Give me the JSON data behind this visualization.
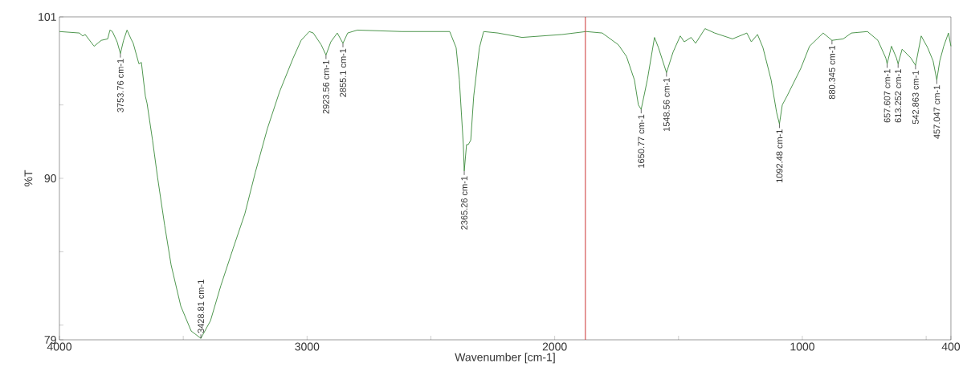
{
  "chart_data": {
    "type": "line",
    "xlabel": "Wavenumber [cm-1]",
    "ylabel": "%T",
    "xlim": [
      4000,
      400
    ],
    "ylim": [
      79,
      101
    ],
    "xticks": [
      4000,
      {
        "value": 3500,
        "label": null
      },
      3000,
      {
        "value": 2500,
        "label": null
      },
      2000,
      {
        "value": 1500,
        "label": null
      },
      1000,
      {
        "value": 500,
        "label": null
      },
      400
    ],
    "yticks": [
      79,
      {
        "value": 80,
        "label": null
      },
      {
        "value": 85,
        "label": null
      },
      90,
      {
        "value": 95,
        "label": null
      },
      101
    ],
    "grid": false,
    "marker": "none",
    "line_style": "solid",
    "x": [
      4000,
      3919,
      3906,
      3896,
      3860,
      3831,
      3805,
      3796,
      3786,
      3767,
      3753.76,
      3741,
      3727,
      3711,
      3702,
      3679,
      3669,
      3653,
      3646,
      3624,
      3604,
      3575,
      3549,
      3510,
      3468,
      3428.81,
      3390,
      3348,
      3299,
      3251,
      3209,
      3160,
      3111,
      3056,
      3024,
      2991,
      2975,
      2943,
      2923.56,
      2904,
      2878,
      2855.1,
      2836,
      2797,
      2618,
      2424,
      2398,
      2385,
      2369,
      2365.26,
      2356,
      2349,
      2339,
      2327,
      2304,
      2287,
      2229,
      2132,
      1970,
      1873,
      1808,
      1743,
      1710,
      1678,
      1662,
      1650.77,
      1626,
      1597,
      1581,
      1548.56,
      1522,
      1493,
      1477,
      1449,
      1431,
      1393,
      1354,
      1282,
      1224,
      1206,
      1181,
      1159,
      1126,
      1104,
      1092.48,
      1081,
      1062,
      1006,
      971,
      916,
      880.345,
      835,
      802,
      737,
      695,
      663,
      657.607,
      640,
      620,
      613.252,
      597,
      562,
      542.863,
      520,
      494,
      472,
      457.047,
      445,
      429,
      410,
      400
    ],
    "series": [
      {
        "color": "#3a8a3a",
        "values": [
          100.0,
          99.9,
          99.7,
          99.8,
          99.0,
          99.4,
          99.5,
          100.1,
          100.0,
          99.3,
          98.5,
          99.4,
          100.1,
          99.5,
          99.2,
          97.8,
          97.9,
          95.6,
          95.1,
          92.6,
          90.1,
          86.8,
          84.1,
          81.3,
          79.6,
          79.1,
          80.3,
          82.7,
          85.2,
          87.6,
          90.4,
          93.4,
          95.9,
          98.2,
          99.4,
          100.0,
          99.9,
          99.1,
          98.4,
          99.3,
          99.9,
          99.2,
          99.9,
          100.1,
          100.0,
          100.0,
          98.9,
          96.7,
          92.3,
          90.5,
          92.3,
          92.3,
          92.6,
          95.6,
          98.9,
          100.0,
          99.9,
          99.6,
          99.8,
          100.0,
          99.9,
          99.1,
          98.3,
          96.7,
          95.0,
          94.7,
          96.7,
          99.6,
          98.9,
          97.2,
          98.6,
          99.7,
          99.3,
          99.6,
          99.2,
          100.2,
          99.9,
          99.5,
          99.9,
          99.3,
          99.8,
          98.9,
          96.7,
          94.5,
          93.7,
          95.0,
          95.6,
          97.5,
          99.0,
          99.9,
          99.4,
          99.5,
          99.9,
          100.0,
          99.4,
          98.2,
          97.8,
          99.0,
          98.2,
          97.8,
          98.8,
          98.2,
          97.7,
          99.7,
          98.9,
          98.0,
          96.7,
          98.0,
          99.0,
          99.9,
          99.0
        ]
      }
    ],
    "ref_lines": [
      {
        "axis": "x",
        "value": 1876,
        "color": "#cc3333"
      }
    ],
    "annotations": [
      {
        "text": "3753.76 cm-1",
        "x": 3753.76,
        "y": 98.5
      },
      {
        "text": "3428.81 cm-1",
        "x": 3428.81,
        "y": 79.1
      },
      {
        "text": "2923.56 cm-1",
        "x": 2923.56,
        "y": 98.4
      },
      {
        "text": "2855.1 cm-1",
        "x": 2855.1,
        "y": 99.2
      },
      {
        "text": "2365.26 cm-1",
        "x": 2365.26,
        "y": 90.5
      },
      {
        "text": "1650.77 cm-1",
        "x": 1650.77,
        "y": 94.7
      },
      {
        "text": "1548.56 cm-1",
        "x": 1548.56,
        "y": 97.2
      },
      {
        "text": "1092.48 cm-1",
        "x": 1092.48,
        "y": 93.7
      },
      {
        "text": "880.345 cm-1",
        "x": 880.345,
        "y": 99.4
      },
      {
        "text": "657.607 cm-1",
        "x": 657.607,
        "y": 97.8
      },
      {
        "text": "613.252 cm-1",
        "x": 613.252,
        "y": 97.8
      },
      {
        "text": "542.863 cm-1",
        "x": 542.863,
        "y": 97.7
      },
      {
        "text": "457.047 cm-1",
        "x": 457.047,
        "y": 96.7
      }
    ]
  }
}
